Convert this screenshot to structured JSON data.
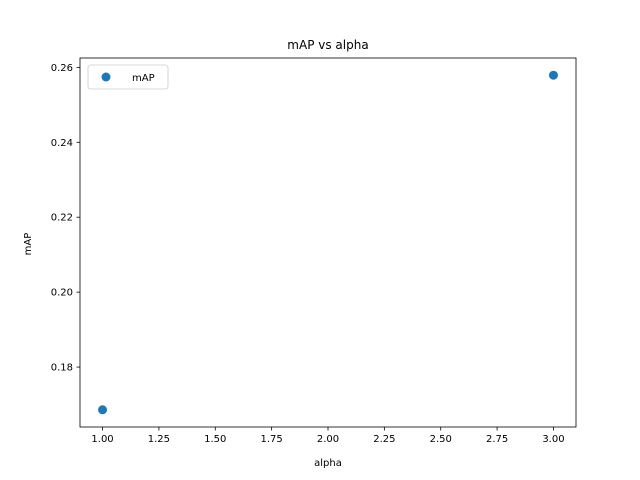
{
  "chart_data": {
    "type": "scatter",
    "title": "mAP vs alpha",
    "xlabel": "alpha",
    "ylabel": "mAP",
    "xlim": [
      0.9,
      3.1
    ],
    "ylim": [
      0.164,
      0.2625
    ],
    "xticks": [
      1.0,
      1.25,
      1.5,
      1.75,
      2.0,
      2.25,
      2.5,
      2.75,
      3.0
    ],
    "xtick_labels": [
      "1.00",
      "1.25",
      "1.50",
      "1.75",
      "2.00",
      "2.25",
      "2.50",
      "2.75",
      "3.00"
    ],
    "yticks": [
      0.18,
      0.2,
      0.22,
      0.24,
      0.26
    ],
    "ytick_labels": [
      "0.18",
      "0.20",
      "0.22",
      "0.24",
      "0.26"
    ],
    "grid": false,
    "legend_position": "top-left",
    "series": [
      {
        "name": "mAP",
        "color": "#1f77b4",
        "marker": "circle",
        "points": [
          {
            "x": 1.0,
            "y": 0.1686
          },
          {
            "x": 3.0,
            "y": 0.2579
          }
        ]
      }
    ]
  }
}
